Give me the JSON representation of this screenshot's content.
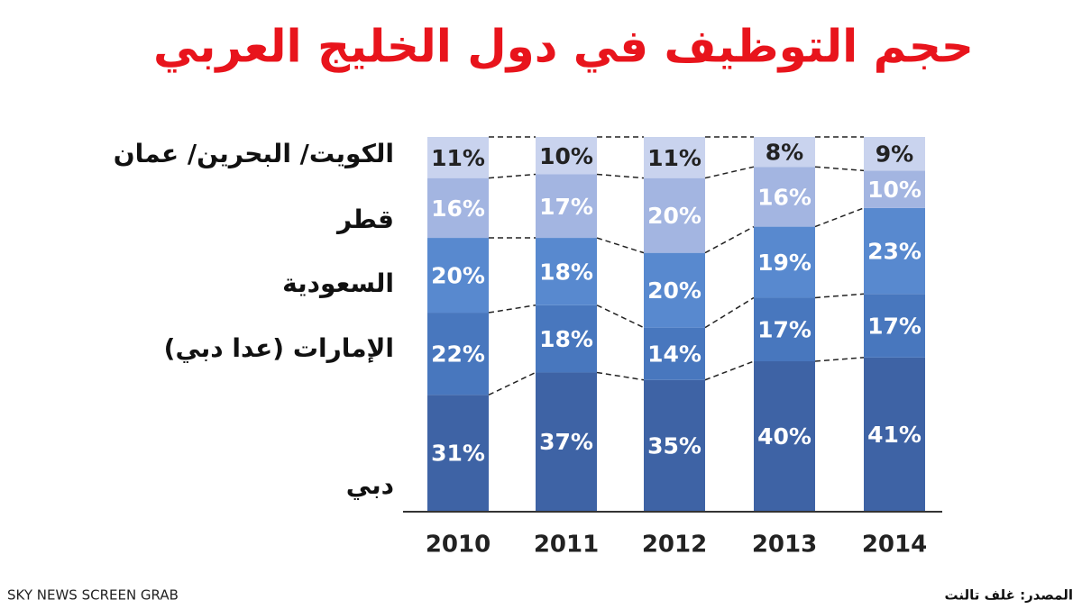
{
  "chart_data": {
    "type": "stacked-bar",
    "title": "حجم التوظيف في دول الخليج العربي",
    "categories": [
      "2010",
      "2011",
      "2012",
      "2013",
      "2014"
    ],
    "series": [
      {
        "name": "دبي",
        "color": "#3e63a5",
        "values": [
          31,
          37,
          35,
          40,
          41
        ],
        "value_labels": [
          "31%",
          "37%",
          "35%",
          "40%",
          "41%"
        ]
      },
      {
        "name": "الإمارات (عدا دبي)",
        "color": "#4877be",
        "values": [
          22,
          18,
          14,
          17,
          17
        ],
        "value_labels": [
          "22%",
          "18%",
          "14%",
          "17%",
          "17%"
        ]
      },
      {
        "name": "السعودية",
        "color": "#5889cf",
        "values": [
          20,
          18,
          20,
          19,
          23
        ],
        "value_labels": [
          "20%",
          "18%",
          "20%",
          "19%",
          "23%"
        ]
      },
      {
        "name": "قطر",
        "color": "#a3b5e1",
        "values": [
          16,
          17,
          20,
          16,
          10
        ],
        "value_labels": [
          "16%",
          "17%",
          "20%",
          "16%",
          "10%"
        ]
      },
      {
        "name": "الكويت/ البحرين/ عمان",
        "color": "#c9d3ee",
        "values": [
          11,
          10,
          11,
          8,
          9
        ],
        "value_labels": [
          "11%",
          "10%",
          "11%",
          "8%",
          "9%"
        ]
      }
    ],
    "source": "المصدر: غلف تالنت",
    "credit": "SKY NEWS SCREEN GRAB"
  }
}
